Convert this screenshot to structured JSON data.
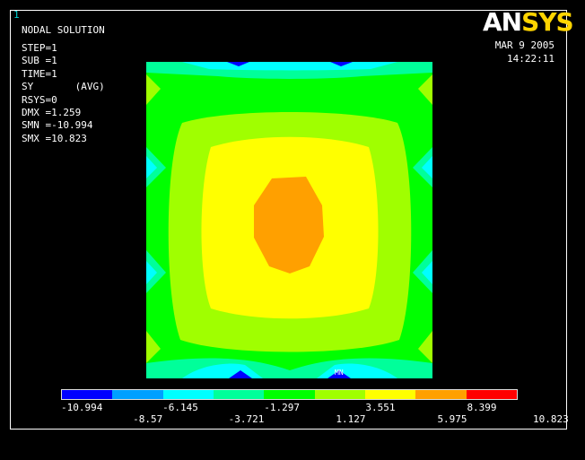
{
  "window": {
    "number": "1"
  },
  "logo": {
    "part1": "AN",
    "part2": "SYS"
  },
  "title": "NODAL SOLUTION",
  "info": [
    "STEP=1",
    "SUB =1",
    "TIME=1",
    "SY       (AVG)",
    "RSYS=0",
    "DMX =1.259",
    "SMN =-10.994",
    "SMX =10.823"
  ],
  "date": "MAR  9 2005",
  "time": "14:22:11",
  "plot": {
    "min_marker": "MN"
  },
  "legend": {
    "colors": [
      "#0000ff",
      "#00a0ff",
      "#00ffff",
      "#00ff9a",
      "#00ff00",
      "#a0ff00",
      "#ffff00",
      "#ffa000",
      "#ff0000"
    ],
    "labels_top": [
      "-10.994",
      "-6.145",
      "-1.297",
      "3.551",
      "8.399"
    ],
    "labels_bottom": [
      "-8.57",
      "-3.721",
      "1.127",
      "5.975",
      "10.823"
    ]
  }
}
